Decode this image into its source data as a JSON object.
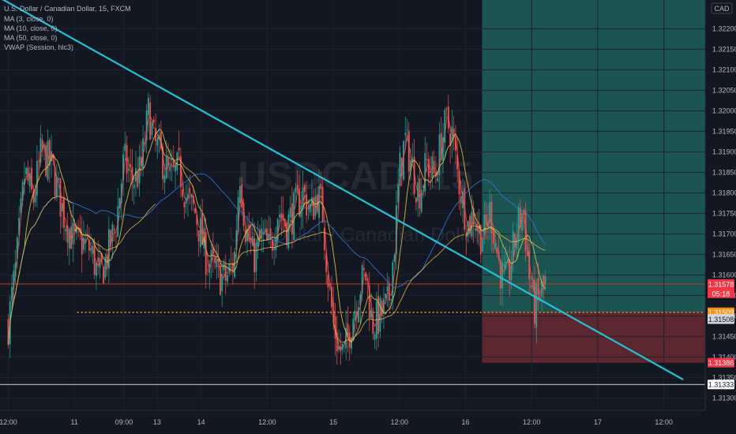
{
  "chart_data": {
    "type": "candlestick",
    "symbol_header": "U.S. Dollar / Canadian Dollar, 15, FXCM",
    "watermark": {
      "ticker": "USDCAD, 15",
      "name": "U.S. Dollar / Canadian Dollar"
    },
    "currency": "CAD",
    "indicators": [
      {
        "label": "MA (3, close, 0)",
        "color": "#ef5350"
      },
      {
        "label": "MA (10, close, 0)",
        "color": "#e6c84a"
      },
      {
        "label": "MA (50, close, 0)",
        "color": "#2f7fd6"
      },
      {
        "label": "VWAP (Session, hlc3)",
        "color": "#f2c14e"
      }
    ],
    "ylim": [
      1.3127,
      1.3227
    ],
    "y_ticks": [
      "1.31300",
      "1.31350",
      "1.31400",
      "1.31450",
      "1.31500",
      "1.31550",
      "1.31600",
      "1.31650",
      "1.31700",
      "1.31750",
      "1.31800",
      "1.31850",
      "1.31900",
      "1.31950",
      "1.32000",
      "1.32050",
      "1.32100",
      "1.32150",
      "1.32200"
    ],
    "y_tick_values": [
      1.313,
      1.3135,
      1.314,
      1.3145,
      1.315,
      1.3155,
      1.316,
      1.3165,
      1.317,
      1.3175,
      1.318,
      1.3185,
      1.319,
      1.3195,
      1.32,
      1.3205,
      1.321,
      1.3215,
      1.322
    ],
    "x_ticks": [
      {
        "label": "12:00",
        "t": 0.0
      },
      {
        "label": "11",
        "t": 12.0
      },
      {
        "label": "09:00",
        "t": 21.0
      },
      {
        "label": "13",
        "t": 27.0
      },
      {
        "label": "14",
        "t": 35.0
      },
      {
        "label": "12:00",
        "t": 47.0
      },
      {
        "label": "15",
        "t": 59.0
      },
      {
        "label": "12:00",
        "t": 71.0
      },
      {
        "label": "16",
        "t": 83.0
      },
      {
        "label": "12:00",
        "t": 95.0
      },
      {
        "label": "17",
        "t": 107.0
      },
      {
        "label": "12:00",
        "t": 119.0
      }
    ],
    "xlim": [
      -1.5,
      126.5
    ],
    "price_path": [
      [
        0,
        1.3148
      ],
      [
        1.5,
        1.3163
      ],
      [
        3,
        1.3185
      ],
      [
        4.5,
        1.3178
      ],
      [
        6,
        1.319
      ],
      [
        8,
        1.3186
      ],
      [
        10,
        1.3175
      ],
      [
        12,
        1.3168
      ],
      [
        13.5,
        1.3168
      ],
      [
        15,
        1.3166
      ],
      [
        16.5,
        1.3159
      ],
      [
        18,
        1.3165
      ],
      [
        19.5,
        1.3172
      ],
      [
        21,
        1.3188
      ],
      [
        22.5,
        1.3183
      ],
      [
        24,
        1.3185
      ],
      [
        25.5,
        1.32
      ],
      [
        26.5,
        1.3192
      ],
      [
        28,
        1.3188
      ],
      [
        29.5,
        1.3183
      ],
      [
        31,
        1.3186
      ],
      [
        32.5,
        1.3178
      ],
      [
        34,
        1.3175
      ],
      [
        36,
        1.3164
      ],
      [
        38,
        1.316
      ],
      [
        39.5,
        1.3159
      ],
      [
        41,
        1.3163
      ],
      [
        42,
        1.3186
      ],
      [
        43,
        1.3172
      ],
      [
        44.5,
        1.3164
      ],
      [
        46,
        1.3169
      ],
      [
        47.5,
        1.3166
      ],
      [
        49,
        1.3176
      ],
      [
        50.5,
        1.3172
      ],
      [
        52,
        1.3176
      ],
      [
        53.5,
        1.318
      ],
      [
        55,
        1.3175
      ],
      [
        56,
        1.318
      ],
      [
        57,
        1.3176
      ],
      [
        58,
        1.316
      ],
      [
        59,
        1.3148
      ],
      [
        60,
        1.3142
      ],
      [
        61,
        1.3141
      ],
      [
        62.5,
        1.315
      ],
      [
        64,
        1.3158
      ],
      [
        65,
        1.316
      ],
      [
        66,
        1.3148
      ],
      [
        67,
        1.3149
      ],
      [
        68,
        1.3151
      ],
      [
        69,
        1.3153
      ],
      [
        70,
        1.3166
      ],
      [
        71,
        1.3185
      ],
      [
        72,
        1.3193
      ],
      [
        73,
        1.3188
      ],
      [
        74.5,
        1.318
      ],
      [
        76,
        1.3187
      ],
      [
        77.5,
        1.3184
      ],
      [
        78.5,
        1.3192
      ],
      [
        79.5,
        1.3197
      ],
      [
        80.5,
        1.3195
      ],
      [
        81.5,
        1.3185
      ],
      [
        82.5,
        1.3178
      ],
      [
        83.5,
        1.3172
      ],
      [
        84.5,
        1.3175
      ],
      [
        85.5,
        1.317
      ],
      [
        86.5,
        1.317
      ],
      [
        87.5,
        1.3176
      ],
      [
        88.5,
        1.3167
      ],
      [
        89.5,
        1.316
      ],
      [
        90.5,
        1.3158
      ],
      [
        91.5,
        1.3165
      ],
      [
        92.5,
        1.3172
      ],
      [
        93.5,
        1.3176
      ],
      [
        94.5,
        1.316
      ],
      [
        95.5,
        1.3152
      ],
      [
        96.5,
        1.3155
      ],
      [
        97.5,
        1.3158
      ]
    ],
    "trendline": {
      "from": [
        -1.5,
        1.32275
      ],
      "to": [
        122.5,
        1.31345
      ],
      "color": "#22c2d6"
    },
    "position": {
      "t_start": 86,
      "t_end": 126.5,
      "entry": 1.31509,
      "target": 1.323,
      "stop": 1.31386,
      "profit_color": "#1f5f5a",
      "loss_color": "#6b2a33"
    },
    "levels": [
      {
        "price": 1.31509,
        "color": "#f7931a",
        "style": "dotted",
        "t_start": 12.5
      },
      {
        "price": 1.31578,
        "color": "#c0392b",
        "style": "solid",
        "t_start": -1.5
      },
      {
        "price": 1.31333,
        "color": "#d1d4dc",
        "style": "solid",
        "t_start": -1.5
      }
    ],
    "price_labels": [
      {
        "text": "1.31578",
        "price": 1.31578,
        "bg": "#f23645",
        "fg": "#ffffff"
      },
      {
        "text": "05:18",
        "price": 1.31555,
        "bg": "#f23645",
        "fg": "#ffffff"
      },
      {
        "text": "1.31509",
        "price": 1.31509,
        "bg": "#f7931a",
        "fg": "#ffffff"
      },
      {
        "text": "1.31508",
        "price": 1.31492,
        "bg": "#d1d4dc",
        "fg": "#131722"
      },
      {
        "text": "1.31386",
        "price": 1.31386,
        "bg": "#f23645",
        "fg": "#ffffff"
      },
      {
        "text": "1.31333",
        "price": 1.31333,
        "bg": "#ffffff",
        "fg": "#131722"
      }
    ],
    "candle_count": 300
  }
}
